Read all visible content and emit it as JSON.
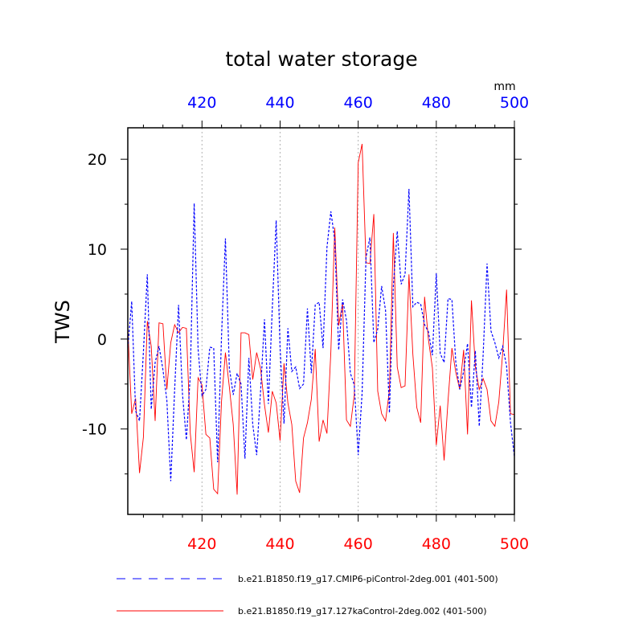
{
  "chart_data": {
    "type": "line",
    "title": "total water storage",
    "ylabel": "TWS",
    "units_label": "mm",
    "xlim": [
      401,
      500
    ],
    "ylim": [
      -19.5,
      23.5
    ],
    "x_ticks": [
      420,
      440,
      460,
      480,
      500
    ],
    "x_tick_labels": [
      "420",
      "440",
      "460",
      "480",
      "500"
    ],
    "y_ticks": [
      -10,
      0,
      10,
      20
    ],
    "y_tick_labels": [
      "-10",
      "0",
      "10",
      "20"
    ],
    "grid_x": [
      420,
      440,
      460,
      480
    ],
    "colors": {
      "top_axis": "#0000ff",
      "bottom_axis": "#ff0000",
      "blue_series": "#0000ff",
      "red_series": "#ff0000"
    },
    "x": [
      401,
      402,
      403,
      404,
      405,
      406,
      407,
      408,
      409,
      410,
      411,
      412,
      413,
      414,
      415,
      416,
      417,
      418,
      419,
      420,
      421,
      422,
      423,
      424,
      425,
      426,
      427,
      428,
      429,
      430,
      431,
      432,
      433,
      434,
      435,
      436,
      437,
      438,
      439,
      440,
      441,
      442,
      443,
      444,
      445,
      446,
      447,
      448,
      449,
      450,
      451,
      452,
      453,
      454,
      455,
      456,
      457,
      458,
      459,
      460,
      461,
      462,
      463,
      464,
      465,
      466,
      467,
      468,
      469,
      470,
      471,
      472,
      473,
      474,
      475,
      476,
      477,
      478,
      479,
      480,
      481,
      482,
      483,
      484,
      485,
      486,
      487,
      488,
      489,
      490,
      491,
      492,
      493,
      494,
      495,
      496,
      497,
      498,
      499,
      500
    ],
    "series": [
      {
        "name": "b.e21.B1850.f19_g17.CMIP6-piControl-2deg.001 (401-500)",
        "style": "dashed",
        "color": "#0000ff",
        "values": [
          -1.0,
          4.2,
          -8.0,
          -9.1,
          -1.4,
          7.2,
          -7.8,
          -2.6,
          -0.8,
          -3.4,
          -6.8,
          -15.8,
          -5.6,
          3.8,
          -6.1,
          -11.2,
          -4.0,
          15.1,
          -1.1,
          -6.3,
          -5.6,
          -0.9,
          -1.0,
          -13.7,
          0.3,
          11.2,
          -3.2,
          -6.2,
          -3.8,
          -5.0,
          -13.3,
          -2.1,
          -9.5,
          -12.9,
          -5.8,
          2.2,
          -7.2,
          3.4,
          13.2,
          -1.0,
          -9.4,
          1.2,
          -3.6,
          -3.1,
          -5.5,
          -5.0,
          3.4,
          -3.8,
          3.8,
          4.1,
          -1.0,
          10.2,
          14.2,
          11.0,
          -1.2,
          4.4,
          2.1,
          -3.8,
          -5.1,
          -12.9,
          -6.0,
          9.1,
          11.3,
          -0.4,
          1.1,
          5.9,
          3.2,
          -8.2,
          5.9,
          12.0,
          6.1,
          7.2,
          16.7,
          3.6,
          4.1,
          3.9,
          1.6,
          0.8,
          -1.8,
          7.3,
          -1.6,
          -2.6,
          4.5,
          4.4,
          -2.6,
          -5.6,
          -3.6,
          -0.5,
          -7.6,
          -1.3,
          -9.7,
          -1.7,
          8.4,
          0.9,
          -0.4,
          -2.1,
          -0.8,
          -3.0,
          -9.3,
          -13.1
        ]
      },
      {
        "name": "b.e21.B1850.f19_g17.127kaControl-2deg.002 (401-500)",
        "style": "solid",
        "color": "#ff0000",
        "values": [
          1.2,
          -8.3,
          -6.6,
          -14.9,
          -10.9,
          2.0,
          -0.8,
          -9.1,
          1.8,
          1.7,
          -5.6,
          -0.4,
          1.6,
          0.7,
          1.3,
          1.2,
          -10.5,
          -14.8,
          -4.3,
          -5.1,
          -10.6,
          -11.0,
          -16.7,
          -17.2,
          -6.9,
          -1.5,
          -5.3,
          -9.5,
          -17.3,
          0.7,
          0.7,
          0.5,
          -4.5,
          -1.5,
          -3.3,
          -7.3,
          -10.4,
          -5.8,
          -7.1,
          -11.3,
          -2.7,
          -7.1,
          -9.5,
          -15.8,
          -17.1,
          -11.0,
          -9.3,
          -6.7,
          -1.1,
          -11.4,
          -9.0,
          -10.5,
          -1.4,
          12.4,
          1.5,
          4.0,
          -9.0,
          -9.7,
          -6.2,
          19.6,
          21.7,
          8.5,
          8.4,
          13.9,
          -5.8,
          -8.3,
          -9.1,
          -5.7,
          11.8,
          -3.1,
          -5.4,
          -5.2,
          7.2,
          -1.7,
          -7.6,
          -9.3,
          4.7,
          -0.1,
          -3.2,
          -11.8,
          -7.4,
          -13.5,
          -6.9,
          -1.0,
          -3.7,
          -5.6,
          -1.2,
          -10.6,
          4.3,
          -3.1,
          -5.6,
          -4.4,
          -5.6,
          -9.1,
          -9.7,
          -7.0,
          -1.5,
          5.5,
          -8.3,
          -8.4
        ]
      }
    ],
    "legend": {
      "position": "bottom"
    }
  }
}
